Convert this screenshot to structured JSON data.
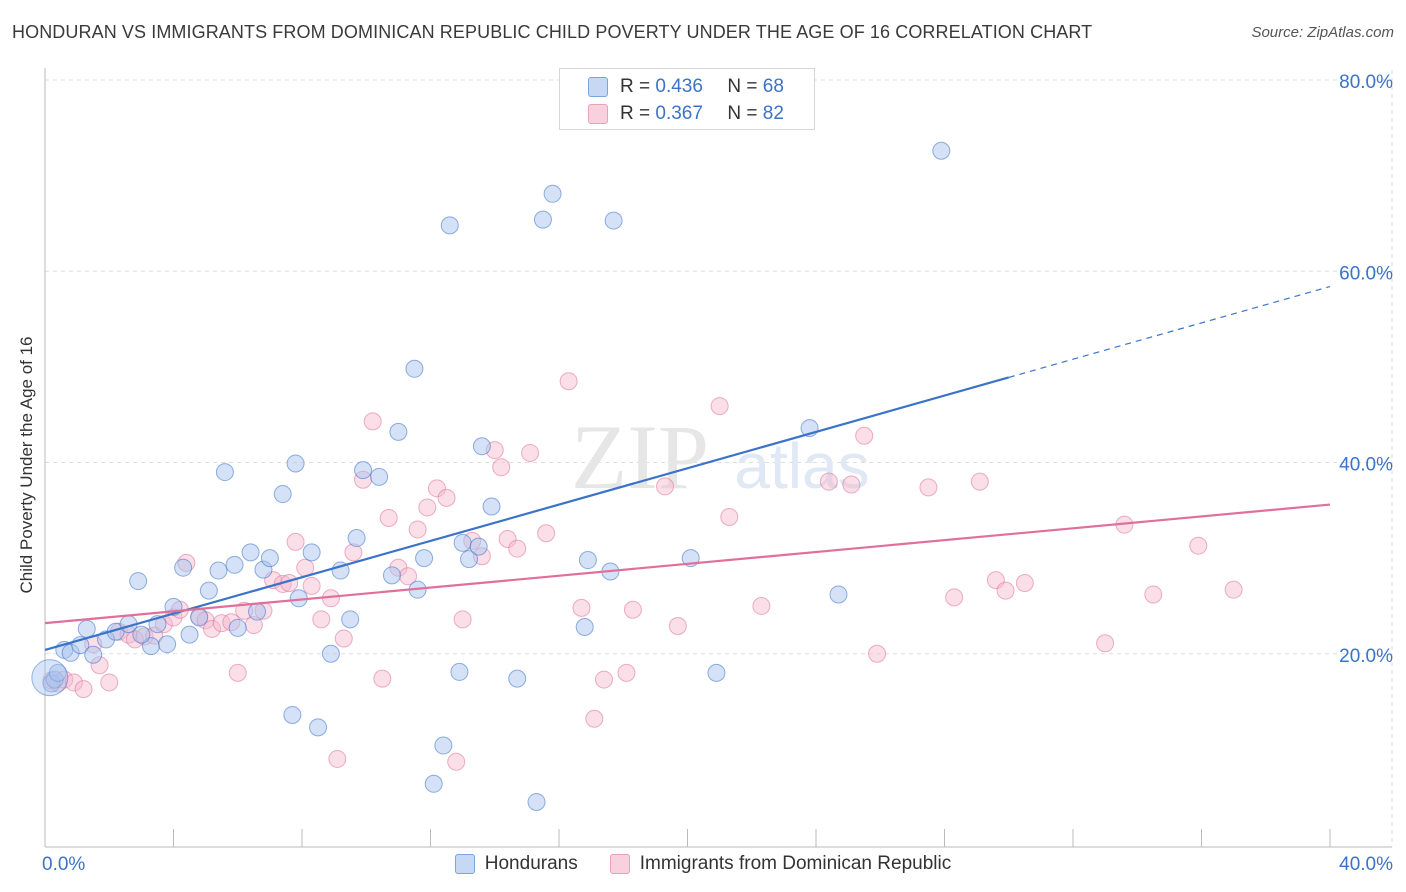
{
  "header": {
    "title": "HONDURAN VS IMMIGRANTS FROM DOMINICAN REPUBLIC CHILD POVERTY UNDER THE AGE OF 16 CORRELATION CHART",
    "source": "Source: ZipAtlas.com"
  },
  "colors": {
    "blue": "#3b73c8",
    "blue_fill": "#a9c4ee",
    "pink": "#e0709a",
    "pink_fill": "#f5b8cc",
    "grid": "#dedede",
    "watermark": "#e6e6e6"
  },
  "legend_top": {
    "row1": {
      "r_label": "R =",
      "r_value": "0.436",
      "n_label": "N =",
      "n_value": "68"
    },
    "row2": {
      "r_label": "R =",
      "r_value": "0.367",
      "n_label": "N =",
      "n_value": "82"
    }
  },
  "chart_data": {
    "type": "scatter",
    "title": "HONDURAN VS IMMIGRANTS FROM DOMINICAN REPUBLIC CHILD POVERTY UNDER THE AGE OF 16 CORRELATION CHART",
    "xlabel": "",
    "ylabel": "Child Poverty Under the Age of 16",
    "xlim": [
      0,
      40
    ],
    "ylim": [
      0,
      80
    ],
    "x_tick_labels": [
      "0.0%",
      "40.0%"
    ],
    "y_tick_labels": [
      "20.0%",
      "40.0%",
      "60.0%",
      "80.0%"
    ],
    "y_ticks": [
      20,
      40,
      60,
      80
    ],
    "watermark": {
      "zip": "ZIP",
      "atlas": "atlas"
    },
    "legend": [
      "Hondurans",
      "Immigrants from Dominican Republic"
    ],
    "series": [
      {
        "name": "Hondurans",
        "color": "#3b73c8",
        "trend": {
          "x0": 0,
          "y0": 20.4,
          "x1": 30.0,
          "y1": 48.9,
          "dash_to_x": 40,
          "dash_to_y": 58.4
        },
        "points": [
          [
            0.2,
            16.9
          ],
          [
            0.3,
            17.3
          ],
          [
            0.4,
            18.0
          ],
          [
            0.6,
            20.4
          ],
          [
            0.8,
            20.1
          ],
          [
            1.1,
            20.9
          ],
          [
            1.3,
            22.6
          ],
          [
            1.5,
            19.9
          ],
          [
            1.9,
            21.5
          ],
          [
            2.2,
            22.3
          ],
          [
            2.6,
            23.1
          ],
          [
            2.9,
            27.6
          ],
          [
            3.3,
            20.8
          ],
          [
            3.5,
            23.1
          ],
          [
            3.8,
            21.0
          ],
          [
            4.0,
            24.9
          ],
          [
            4.3,
            29.0
          ],
          [
            4.5,
            22.0
          ],
          [
            4.8,
            23.8
          ],
          [
            5.1,
            26.6
          ],
          [
            5.4,
            28.7
          ],
          [
            5.6,
            39.0
          ],
          [
            5.9,
            29.3
          ],
          [
            6.0,
            22.7
          ],
          [
            6.4,
            30.6
          ],
          [
            6.6,
            24.4
          ],
          [
            6.8,
            28.8
          ],
          [
            7.0,
            30.0
          ],
          [
            7.4,
            36.7
          ],
          [
            7.7,
            13.6
          ],
          [
            7.8,
            39.9
          ],
          [
            7.9,
            25.8
          ],
          [
            8.3,
            30.6
          ],
          [
            8.5,
            12.3
          ],
          [
            8.9,
            20.0
          ],
          [
            9.2,
            28.7
          ],
          [
            9.5,
            23.6
          ],
          [
            9.7,
            32.1
          ],
          [
            9.9,
            39.2
          ],
          [
            10.4,
            38.5
          ],
          [
            10.8,
            28.2
          ],
          [
            11.0,
            43.2
          ],
          [
            11.5,
            49.8
          ],
          [
            11.6,
            26.7
          ],
          [
            11.8,
            30.0
          ],
          [
            12.1,
            6.4
          ],
          [
            12.4,
            10.4
          ],
          [
            12.6,
            64.8
          ],
          [
            12.9,
            18.1
          ],
          [
            13.0,
            31.6
          ],
          [
            13.2,
            29.9
          ],
          [
            13.5,
            31.2
          ],
          [
            13.6,
            41.7
          ],
          [
            13.9,
            35.4
          ],
          [
            14.7,
            17.4
          ],
          [
            15.5,
            65.4
          ],
          [
            15.8,
            68.1
          ],
          [
            16.8,
            22.8
          ],
          [
            16.9,
            29.8
          ],
          [
            17.6,
            28.6
          ],
          [
            17.7,
            65.3
          ],
          [
            20.1,
            30.0
          ],
          [
            20.9,
            18.0
          ],
          [
            23.8,
            43.6
          ],
          [
            24.7,
            26.2
          ],
          [
            27.9,
            72.6
          ],
          [
            15.3,
            4.5
          ],
          [
            3.0,
            22.0
          ]
        ]
      },
      {
        "name": "Immigrants from Dominican Republic",
        "color": "#e0709a",
        "trend": {
          "x0": 0,
          "y0": 23.2,
          "x1": 40,
          "y1": 35.6
        },
        "points": [
          [
            0.2,
            17.2
          ],
          [
            0.4,
            16.9
          ],
          [
            0.6,
            17.3
          ],
          [
            0.9,
            17.0
          ],
          [
            1.2,
            16.3
          ],
          [
            1.5,
            21.0
          ],
          [
            1.7,
            18.8
          ],
          [
            2.0,
            17.0
          ],
          [
            2.3,
            22.3
          ],
          [
            2.6,
            22.0
          ],
          [
            2.8,
            21.5
          ],
          [
            3.1,
            21.8
          ],
          [
            3.4,
            21.9
          ],
          [
            3.7,
            23.1
          ],
          [
            4.0,
            23.8
          ],
          [
            4.2,
            24.6
          ],
          [
            4.4,
            29.5
          ],
          [
            4.8,
            23.9
          ],
          [
            5.0,
            23.5
          ],
          [
            5.2,
            22.6
          ],
          [
            5.5,
            23.2
          ],
          [
            5.8,
            23.3
          ],
          [
            6.0,
            18.0
          ],
          [
            6.2,
            24.5
          ],
          [
            6.5,
            23.0
          ],
          [
            6.8,
            24.5
          ],
          [
            7.1,
            27.7
          ],
          [
            7.4,
            27.3
          ],
          [
            7.6,
            27.4
          ],
          [
            7.8,
            31.7
          ],
          [
            8.1,
            29.0
          ],
          [
            8.3,
            27.1
          ],
          [
            8.6,
            23.6
          ],
          [
            8.9,
            25.8
          ],
          [
            9.1,
            9.0
          ],
          [
            9.3,
            21.6
          ],
          [
            9.6,
            30.6
          ],
          [
            9.9,
            38.2
          ],
          [
            10.2,
            44.3
          ],
          [
            10.5,
            17.4
          ],
          [
            10.7,
            34.2
          ],
          [
            11.0,
            29.0
          ],
          [
            11.3,
            28.1
          ],
          [
            11.6,
            33.0
          ],
          [
            11.9,
            35.3
          ],
          [
            12.2,
            37.3
          ],
          [
            12.5,
            36.3
          ],
          [
            12.8,
            8.7
          ],
          [
            13.0,
            23.6
          ],
          [
            13.3,
            31.8
          ],
          [
            13.6,
            30.2
          ],
          [
            14.0,
            41.3
          ],
          [
            14.2,
            39.5
          ],
          [
            14.4,
            32.0
          ],
          [
            14.7,
            31.0
          ],
          [
            15.1,
            41.0
          ],
          [
            15.6,
            32.6
          ],
          [
            16.3,
            48.5
          ],
          [
            16.7,
            24.8
          ],
          [
            17.1,
            13.2
          ],
          [
            17.4,
            17.3
          ],
          [
            18.1,
            18.0
          ],
          [
            18.3,
            24.6
          ],
          [
            19.3,
            37.5
          ],
          [
            19.7,
            22.9
          ],
          [
            21.0,
            45.9
          ],
          [
            21.3,
            34.3
          ],
          [
            22.3,
            25.0
          ],
          [
            24.4,
            38.0
          ],
          [
            25.1,
            37.7
          ],
          [
            25.5,
            42.8
          ],
          [
            25.9,
            20.0
          ],
          [
            27.5,
            37.4
          ],
          [
            28.3,
            25.9
          ],
          [
            29.1,
            38.0
          ],
          [
            29.6,
            27.7
          ],
          [
            29.9,
            26.6
          ],
          [
            30.5,
            27.4
          ],
          [
            33.0,
            21.1
          ],
          [
            33.6,
            33.5
          ],
          [
            34.5,
            26.2
          ],
          [
            35.9,
            31.3
          ]
        ]
      }
    ],
    "extra_points_pink": [
      [
        37.0,
        26.7
      ]
    ]
  }
}
